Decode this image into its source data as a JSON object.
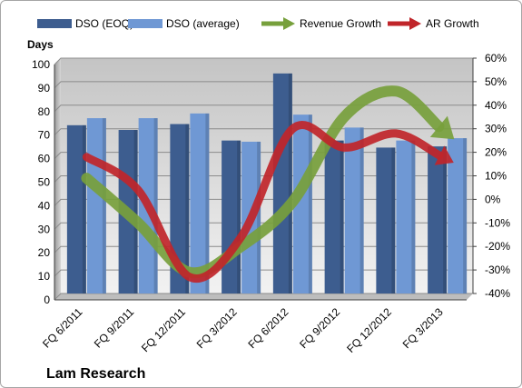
{
  "chart_data": {
    "type": "bar",
    "title": "",
    "caption": "Lam Research",
    "y_label": "Days",
    "categories": [
      "FQ 6/2011",
      "FQ 9/2011",
      "FQ 12/2011",
      "FQ 3/2012",
      "FQ 6/2012",
      "FQ 9/2012",
      "FQ 12/2012",
      "FQ 3/2013"
    ],
    "ylim": [
      0,
      100
    ],
    "y_ticks": [
      "0",
      "10",
      "20",
      "30",
      "40",
      "50",
      "60",
      "70",
      "80",
      "90",
      "100"
    ],
    "y2lim": [
      -40,
      60
    ],
    "y2_ticks": [
      "-40%",
      "-30%",
      "-20%",
      "-10%",
      "0%",
      "10%",
      "20%",
      "30%",
      "40%",
      "50%",
      "60%"
    ],
    "grid": true,
    "legend_position": "top",
    "series": [
      {
        "name": "DSO (EOQ)",
        "kind": "bar",
        "axis": "left",
        "color": "#3d5d8f",
        "values": [
          71.5,
          69.5,
          72,
          65,
          93.5,
          65,
          62,
          62.5
        ]
      },
      {
        "name": "DSO (average)",
        "kind": "bar",
        "axis": "left",
        "color": "#6f98d4",
        "values": [
          74.5,
          74.5,
          76.5,
          64.5,
          76,
          70.5,
          65,
          66
        ]
      },
      {
        "name": "Revenue Growth",
        "kind": "arrow",
        "axis": "right",
        "unit": "%",
        "color": "#77a03c",
        "values": [
          9,
          -10,
          -31,
          -20,
          -1,
          35,
          46,
          28
        ]
      },
      {
        "name": "AR Growth",
        "kind": "arrow",
        "axis": "right",
        "unit": "%",
        "color": "#c0252a",
        "values": [
          18,
          4,
          -33,
          -16,
          30,
          22,
          28,
          17
        ]
      }
    ]
  }
}
